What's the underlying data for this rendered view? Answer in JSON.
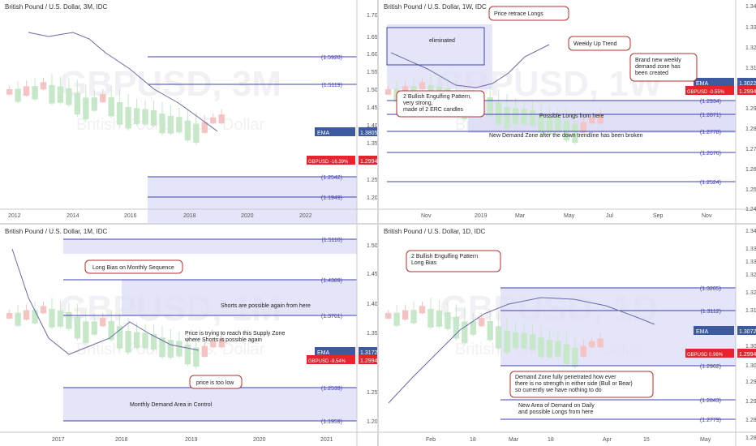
{
  "colors": {
    "up": "#1e8a2e",
    "down": "#d32f2f",
    "up_faded": "#c6e8c8",
    "down_faded": "#f6c3c3",
    "level": "#3f3fb3",
    "zone": "#dcdcf7",
    "ema": "#6a6aa8",
    "annotation": "#b23030",
    "ema_badge": "#3d5a9e",
    "price_badge": "#e8232d"
  },
  "watermark": {
    "symbol": "GBPUSD",
    "name": "British Pound / U.S. Dollar"
  },
  "panels": [
    {
      "id": "p3m",
      "title": "British Pound / U.S. Dollar, 3M, IDC",
      "watermark_tf": "3M",
      "xticks": [
        "2012",
        "2014",
        "2016",
        "2018",
        "2020",
        "2022"
      ],
      "yticks": [
        "1.7000",
        "1.6500",
        "1.6000",
        "1.5500",
        "1.5000",
        "1.4500",
        "1.4000",
        "1.3500",
        "1.3000",
        "1.2500",
        "1.2000"
      ],
      "levels": [
        "(1.5920)",
        "(1.5119)",
        "(1.2542)",
        "(1.1949)"
      ],
      "ema_badge": {
        "label": "EMA",
        "value": "1.3805"
      },
      "price_badge": {
        "label": "GBPUSD -16.39%",
        "value": "1.2994"
      },
      "annotations": []
    },
    {
      "id": "p1w",
      "title": "British Pound / U.S. Dollar, 1W, IDC",
      "watermark_tf": "1W",
      "xticks": [
        "Nov",
        "2019",
        "Mar",
        "May",
        "Jul",
        "Sep",
        "Nov"
      ],
      "yticks": [
        "1.3400",
        "1.3300",
        "1.3200",
        "1.3100",
        "1.3000",
        "1.2900",
        "1.2800",
        "1.2700",
        "1.2600",
        "1.2500",
        "1.2400"
      ],
      "levels": [
        "(1.2934)",
        "(1.2871)",
        "(1.2778)",
        "(1.2676)",
        "(1.2524)"
      ],
      "ema_badge": {
        "label": "EMA",
        "value": "1.3022"
      },
      "price_badge": {
        "label": "GBPUSD -0.55%",
        "value": "1.2994"
      },
      "annotations": [
        {
          "key": "eliminated",
          "text": "eliminated"
        },
        {
          "key": "price_retrace",
          "text": "Price retrace Longs"
        },
        {
          "key": "weekly_up",
          "text": "Weekly Up Trend"
        },
        {
          "key": "brand_new",
          "text": "Brand new weekly\ndemand zone has\nbeen created"
        },
        {
          "key": "bullish_engulf",
          "text": "2 Bullish Engulfing Pattern,\nvery strong,\nmade of 2 ERC candles"
        },
        {
          "key": "possible_longs",
          "text": "Possible Longs from here"
        },
        {
          "key": "new_demand",
          "text": "New Demand Zone after the down trendline has been broken"
        }
      ]
    },
    {
      "id": "p1m",
      "title": "British Pound / U.S. Dollar, 1M, IDC",
      "watermark_tf": "1M",
      "xticks": [
        "2017",
        "2018",
        "2019",
        "2020",
        "2021"
      ],
      "yticks": [
        "1.5000",
        "1.4500",
        "1.4000",
        "1.3500",
        "1.3000",
        "1.2500",
        "1.2000"
      ],
      "levels": [
        "(1.5110)",
        "(1.4389)",
        "(1.3761)",
        "(1.2539)",
        "(1.1959)"
      ],
      "ema_badge": {
        "label": "EMA",
        "value": "1.3172"
      },
      "price_badge": {
        "label": "GBPUSD -9.54%",
        "value": "1.2994"
      },
      "annotations": [
        {
          "key": "long_bias",
          "text": "Long Bias on Monthly Sequence"
        },
        {
          "key": "shorts_possible",
          "text": "Shorts are possible again from here"
        },
        {
          "key": "price_trying",
          "text": "Price is trying to reach this Supply Zone\nwhere Shorts is possible again"
        },
        {
          "key": "price_low",
          "text": "price is too low"
        },
        {
          "key": "monthly_demand",
          "text": "Monthly Demand Area in Control"
        }
      ]
    },
    {
      "id": "p1d",
      "title": "British Pound / U.S. Dollar, 1D, IDC",
      "watermark_tf": "1D",
      "xticks": [
        "Feb",
        "18",
        "Mar",
        "18",
        "Apr",
        "15",
        "May"
      ],
      "yticks": [
        "1.3400",
        "1.3350",
        "1.3300",
        "1.3250",
        "1.3200",
        "1.3150",
        "1.3100",
        "1.3050",
        "1.3000",
        "1.2950",
        "1.2900",
        "1.2850",
        "1.2800"
      ],
      "levels": [
        "(1.3205)",
        "(1.3112)",
        "(1.2962)",
        "(1.2843)",
        "(1.2779)"
      ],
      "ema_badge": {
        "label": "EMA",
        "value": "1.3072"
      },
      "price_badge": {
        "label": "GBPUSD 0.96%",
        "value": "1.2994"
      },
      "annotations": [
        {
          "key": "bullish_engulf_d",
          "text": "2 Bullish Engulfing Pattern\nLong Bias"
        },
        {
          "key": "demand_zone_d",
          "text": "Demand Zone fully penetrated how ever\nthere is no strength in either side (Bull or Bear)\nso currently we have nothing to do"
        },
        {
          "key": "new_area",
          "text": "New Area of Demand on Daily\nand possible Longs from here"
        }
      ]
    }
  ]
}
